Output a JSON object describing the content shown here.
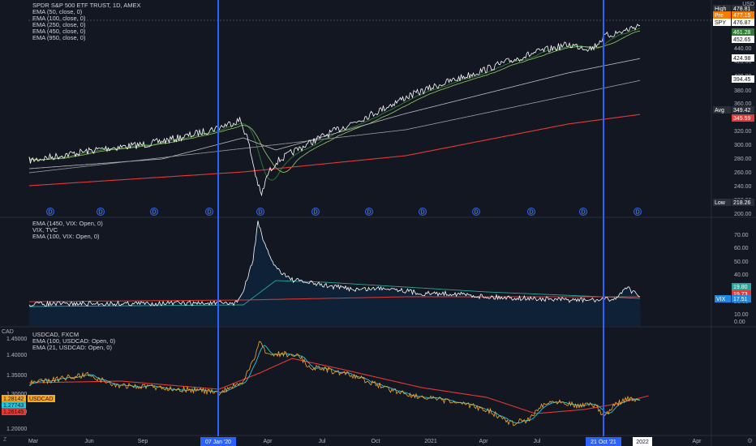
{
  "panels": {
    "spy": {
      "legend": [
        "SPDR S&P 500 ETF TRUST, 1D, AMEX",
        "EMA (50, close, 0)",
        "EMA (100, close, 0)",
        "EMA (250, close, 0)",
        "EMA (450, close, 0)",
        "EMA (950, close, 0)"
      ],
      "axis_ticks": [
        "440.00",
        "420.00",
        "400.00",
        "380.00",
        "360.00",
        "340.00",
        "320.00",
        "300.00",
        "280.00",
        "260.00",
        "240.00",
        "220.00",
        "200.00"
      ],
      "top_right_unit": "USD",
      "badges": [
        {
          "label": "High",
          "value": "478.81",
          "color": "#2a2e39"
        },
        {
          "label": "Pre",
          "value": "477.15",
          "color": "#f57c00"
        },
        {
          "label": "SPY",
          "value": "476.87",
          "color": "#ffffff"
        },
        {
          "label": "",
          "value": "461.28",
          "color": "#2e7d32"
        },
        {
          "label": "",
          "value": "452.65",
          "color": "#ffffff"
        },
        {
          "label": "",
          "value": "424.98",
          "color": "#ffffff"
        },
        {
          "label": "",
          "value": "394.45",
          "color": "#ffffff"
        },
        {
          "label": "Avg",
          "value": "349.42",
          "color": "#2a2e39"
        },
        {
          "label": "",
          "value": "345.59",
          "color": "#e53935"
        },
        {
          "label": "Low",
          "value": "218.26",
          "color": "#2a2e39"
        }
      ],
      "dividend_marker": "D",
      "colors": {
        "price": "#ffffff",
        "ema50": "#2e7d32",
        "ema100": "#9ccc65",
        "ema250": "#bdbdbd",
        "ema450": "#9e9e9e",
        "ema950": "#e53935"
      }
    },
    "vix": {
      "legend": [
        "EMA (1450, VIX: Open, 0)",
        "VIX, TVC",
        "EMA (100, VIX: Open, 0)"
      ],
      "axis_ticks": [
        "70.00",
        "60.00",
        "50.00",
        "40.00",
        "30.00",
        "20.00",
        "10.00",
        "0.00"
      ],
      "badges": [
        {
          "label": "",
          "value": "19.80",
          "color": "#26a69a"
        },
        {
          "label": "",
          "value": "19.73",
          "color": "#e53935"
        },
        {
          "label": "VIX",
          "value": "17.51",
          "color": "#1e88e5"
        }
      ]
    },
    "usdcad": {
      "legend": [
        "USDCAD, FXCM",
        "EMA (100, USDCAD: Open, 0)",
        "EMA (21, USDCAD: Open, 0)"
      ],
      "unit": "CAD",
      "axis_ticks": [
        "1.45000",
        "1.40000",
        "1.35000",
        "1.30000",
        "1.25000",
        "1.20000"
      ],
      "badges": [
        {
          "label": "USDCAD",
          "value": "1.28142",
          "color": "#f9a825"
        },
        {
          "label": "",
          "value": "1.27743",
          "color": "#26c6da"
        },
        {
          "label": "",
          "value": "1.26145",
          "color": "#e53935"
        }
      ]
    }
  },
  "time_axis": {
    "labels": [
      "Mar",
      "Jun",
      "Sep",
      "Apr",
      "Jul",
      "Oct",
      "2021",
      "Apr",
      "Jul",
      "Apr"
    ],
    "highlight_labels": [
      "07 Jan '20",
      "21 Oct '21",
      "2022"
    ]
  },
  "footer": {
    "left": "Z",
    "right": "⚙"
  },
  "accent": "#2962ff"
}
